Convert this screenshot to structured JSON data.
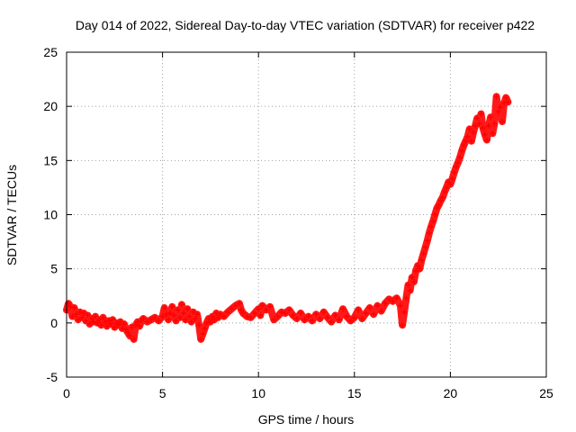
{
  "chart_data": {
    "type": "scatter",
    "title": "Day 014 of 2022, Sidereal Day-to-day VTEC variation (SDTVAR) for receiver p422",
    "xlabel": "GPS time / hours",
    "ylabel": "SDTVAR / TECUs",
    "xlim": [
      0,
      25
    ],
    "ylim": [
      -5,
      25
    ],
    "xticks": [
      0,
      5,
      10,
      15,
      20,
      25
    ],
    "yticks": [
      -5,
      0,
      5,
      10,
      15,
      20,
      25
    ],
    "grid": true,
    "marker": "+",
    "color": "#ff0000",
    "series": [
      {
        "name": "SDTVAR",
        "points": [
          [
            0.0,
            1.2
          ],
          [
            0.1,
            1.8
          ],
          [
            0.2,
            1.5
          ],
          [
            0.3,
            0.6
          ],
          [
            0.4,
            1.4
          ],
          [
            0.5,
            0.8
          ],
          [
            0.6,
            0.3
          ],
          [
            0.7,
            1.0
          ],
          [
            0.8,
            0.5
          ],
          [
            0.9,
            0.9
          ],
          [
            1.0,
            0.2
          ],
          [
            1.1,
            0.7
          ],
          [
            1.2,
            -0.1
          ],
          [
            1.3,
            0.4
          ],
          [
            1.4,
            0.1
          ],
          [
            1.5,
            0.6
          ],
          [
            1.6,
            0.0
          ],
          [
            1.7,
            0.3
          ],
          [
            1.8,
            -0.2
          ],
          [
            1.9,
            0.5
          ],
          [
            2.0,
            0.1
          ],
          [
            2.1,
            -0.3
          ],
          [
            2.2,
            0.2
          ],
          [
            2.3,
            -0.1
          ],
          [
            2.4,
            0.3
          ],
          [
            2.5,
            -0.4
          ],
          [
            2.6,
            0.0
          ],
          [
            2.7,
            -0.2
          ],
          [
            2.8,
            0.1
          ],
          [
            2.9,
            -0.5
          ],
          [
            3.0,
            -0.1
          ],
          [
            3.1,
            -0.6
          ],
          [
            3.2,
            -0.9
          ],
          [
            3.3,
            -1.2
          ],
          [
            3.4,
            -0.4
          ],
          [
            3.5,
            -1.5
          ],
          [
            3.6,
            -0.2
          ],
          [
            3.7,
            0.1
          ],
          [
            3.8,
            -0.3
          ],
          [
            3.9,
            0.2
          ],
          [
            4.0,
            0.4
          ],
          [
            4.2,
            0.1
          ],
          [
            4.4,
            0.3
          ],
          [
            4.6,
            0.5
          ],
          [
            4.8,
            0.2
          ],
          [
            5.0,
            0.6
          ],
          [
            5.1,
            1.4
          ],
          [
            5.2,
            0.8
          ],
          [
            5.3,
            0.3
          ],
          [
            5.4,
            0.9
          ],
          [
            5.5,
            1.5
          ],
          [
            5.6,
            0.7
          ],
          [
            5.7,
            0.2
          ],
          [
            5.8,
            1.2
          ],
          [
            5.9,
            0.5
          ],
          [
            6.0,
            1.7
          ],
          [
            6.1,
            0.9
          ],
          [
            6.2,
            0.3
          ],
          [
            6.3,
            1.3
          ],
          [
            6.4,
            0.6
          ],
          [
            6.5,
            0.1
          ],
          [
            6.6,
            1.0
          ],
          [
            6.7,
            0.4
          ],
          [
            6.8,
            0.8
          ],
          [
            6.9,
            -0.2
          ],
          [
            7.0,
            -1.5
          ],
          [
            7.1,
            -1.0
          ],
          [
            7.2,
            -0.5
          ],
          [
            7.3,
            0.0
          ],
          [
            7.4,
            0.4
          ],
          [
            7.5,
            0.1
          ],
          [
            7.6,
            0.6
          ],
          [
            7.7,
            0.3
          ],
          [
            7.8,
            0.9
          ],
          [
            7.9,
            0.5
          ],
          [
            8.0,
            0.8
          ],
          [
            8.2,
            0.6
          ],
          [
            8.4,
            1.0
          ],
          [
            8.6,
            1.3
          ],
          [
            8.8,
            1.6
          ],
          [
            9.0,
            1.8
          ],
          [
            9.1,
            1.2
          ],
          [
            9.2,
            0.9
          ],
          [
            9.4,
            0.6
          ],
          [
            9.6,
            0.5
          ],
          [
            9.8,
            0.9
          ],
          [
            10.0,
            1.3
          ],
          [
            10.1,
            0.7
          ],
          [
            10.2,
            1.6
          ],
          [
            10.4,
            1.2
          ],
          [
            10.6,
            1.5
          ],
          [
            10.8,
            0.3
          ],
          [
            11.0,
            0.6
          ],
          [
            11.2,
            1.0
          ],
          [
            11.4,
            0.9
          ],
          [
            11.6,
            1.2
          ],
          [
            11.8,
            0.7
          ],
          [
            12.0,
            0.4
          ],
          [
            12.2,
            0.9
          ],
          [
            12.4,
            0.3
          ],
          [
            12.6,
            0.6
          ],
          [
            12.8,
            0.2
          ],
          [
            13.0,
            0.8
          ],
          [
            13.2,
            0.4
          ],
          [
            13.4,
            1.0
          ],
          [
            13.6,
            0.5
          ],
          [
            13.8,
            0.1
          ],
          [
            14.0,
            0.7
          ],
          [
            14.2,
            0.3
          ],
          [
            14.4,
            1.3
          ],
          [
            14.6,
            0.6
          ],
          [
            14.8,
            0.2
          ],
          [
            15.0,
            0.5
          ],
          [
            15.2,
            1.2
          ],
          [
            15.4,
            0.4
          ],
          [
            15.6,
            0.9
          ],
          [
            15.8,
            1.4
          ],
          [
            16.0,
            0.8
          ],
          [
            16.2,
            1.6
          ],
          [
            16.4,
            1.1
          ],
          [
            16.6,
            1.8
          ],
          [
            16.8,
            2.2
          ],
          [
            17.0,
            2.0
          ],
          [
            17.2,
            2.3
          ],
          [
            17.4,
            1.6
          ],
          [
            17.5,
            -0.2
          ],
          [
            17.6,
            1.0
          ],
          [
            17.7,
            2.3
          ],
          [
            17.8,
            3.5
          ],
          [
            17.9,
            3.0
          ],
          [
            18.0,
            4.2
          ],
          [
            18.1,
            3.8
          ],
          [
            18.2,
            4.8
          ],
          [
            18.3,
            5.3
          ],
          [
            18.4,
            5.0
          ],
          [
            18.5,
            5.8
          ],
          [
            18.6,
            6.4
          ],
          [
            18.7,
            7.0
          ],
          [
            18.8,
            7.6
          ],
          [
            18.9,
            8.3
          ],
          [
            19.0,
            8.9
          ],
          [
            19.1,
            9.4
          ],
          [
            19.2,
            10.0
          ],
          [
            19.3,
            10.6
          ],
          [
            19.4,
            10.9
          ],
          [
            19.5,
            11.3
          ],
          [
            19.6,
            11.6
          ],
          [
            19.7,
            12.1
          ],
          [
            19.8,
            12.5
          ],
          [
            19.9,
            13.0
          ],
          [
            20.0,
            12.8
          ],
          [
            20.1,
            13.3
          ],
          [
            20.2,
            13.9
          ],
          [
            20.3,
            14.4
          ],
          [
            20.4,
            14.8
          ],
          [
            20.5,
            15.3
          ],
          [
            20.6,
            15.9
          ],
          [
            20.7,
            16.4
          ],
          [
            20.8,
            16.8
          ],
          [
            20.9,
            17.2
          ],
          [
            21.0,
            17.9
          ],
          [
            21.1,
            16.8
          ],
          [
            21.2,
            17.6
          ],
          [
            21.3,
            18.2
          ],
          [
            21.4,
            18.9
          ],
          [
            21.5,
            18.4
          ],
          [
            21.6,
            19.3
          ],
          [
            21.7,
            18.0
          ],
          [
            21.8,
            17.4
          ],
          [
            21.9,
            16.9
          ],
          [
            22.0,
            18.2
          ],
          [
            22.1,
            19.0
          ],
          [
            22.2,
            17.5
          ],
          [
            22.3,
            18.4
          ],
          [
            22.4,
            20.9
          ],
          [
            22.5,
            19.5
          ],
          [
            22.6,
            19.9
          ],
          [
            22.7,
            18.6
          ],
          [
            22.8,
            20.3
          ],
          [
            22.9,
            20.8
          ],
          [
            23.0,
            20.4
          ]
        ]
      }
    ]
  }
}
